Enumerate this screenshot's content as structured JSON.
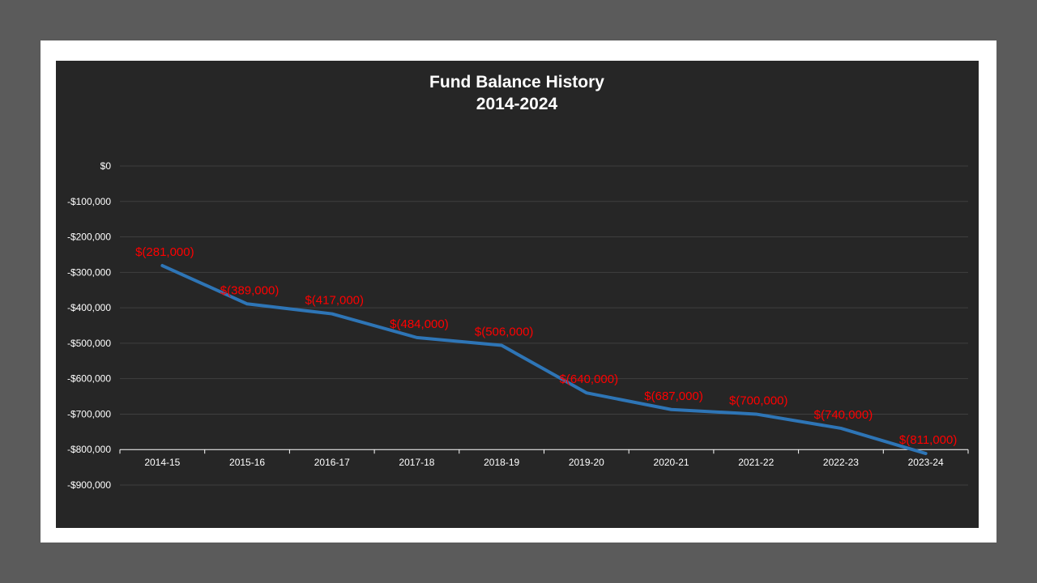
{
  "chart_data": {
    "type": "line",
    "title": "Fund Balance History",
    "subtitle": "2014-2024",
    "xlabel": "",
    "ylabel": "",
    "categories": [
      "2014-15",
      "2015-16",
      "2016-17",
      "2017-18",
      "2018-19",
      "2019-20",
      "2020-21",
      "2021-22",
      "2022-23",
      "2023-24"
    ],
    "series": [
      {
        "name": "Fund Balance",
        "color": "#2e75b6",
        "values": [
          -281000,
          -389000,
          -417000,
          -484000,
          -506000,
          -640000,
          -687000,
          -700000,
          -740000,
          -811000
        ],
        "data_labels": [
          "$(281,000)",
          "$(389,000)",
          "$(417,000)",
          "$(484,000)",
          "$(506,000)",
          "$(640,000)",
          "$(687,000)",
          "$(700,000)",
          "$(740,000)",
          "$(811,000)"
        ]
      }
    ],
    "ylim": [
      -900000,
      0
    ],
    "y_ticks": [
      0,
      -100000,
      -200000,
      -300000,
      -400000,
      -500000,
      -600000,
      -700000,
      -800000,
      -900000
    ],
    "y_tick_labels": [
      "$0",
      "-$100,000",
      "-$200,000",
      "-$300,000",
      "-$400,000",
      "-$500,000",
      "-$600,000",
      "-$700,000",
      "-$800,000",
      "-$900,000"
    ],
    "x_axis_crosses_at": -800000,
    "grid": true,
    "legend": "none",
    "data_label_color": "#ff0000"
  }
}
